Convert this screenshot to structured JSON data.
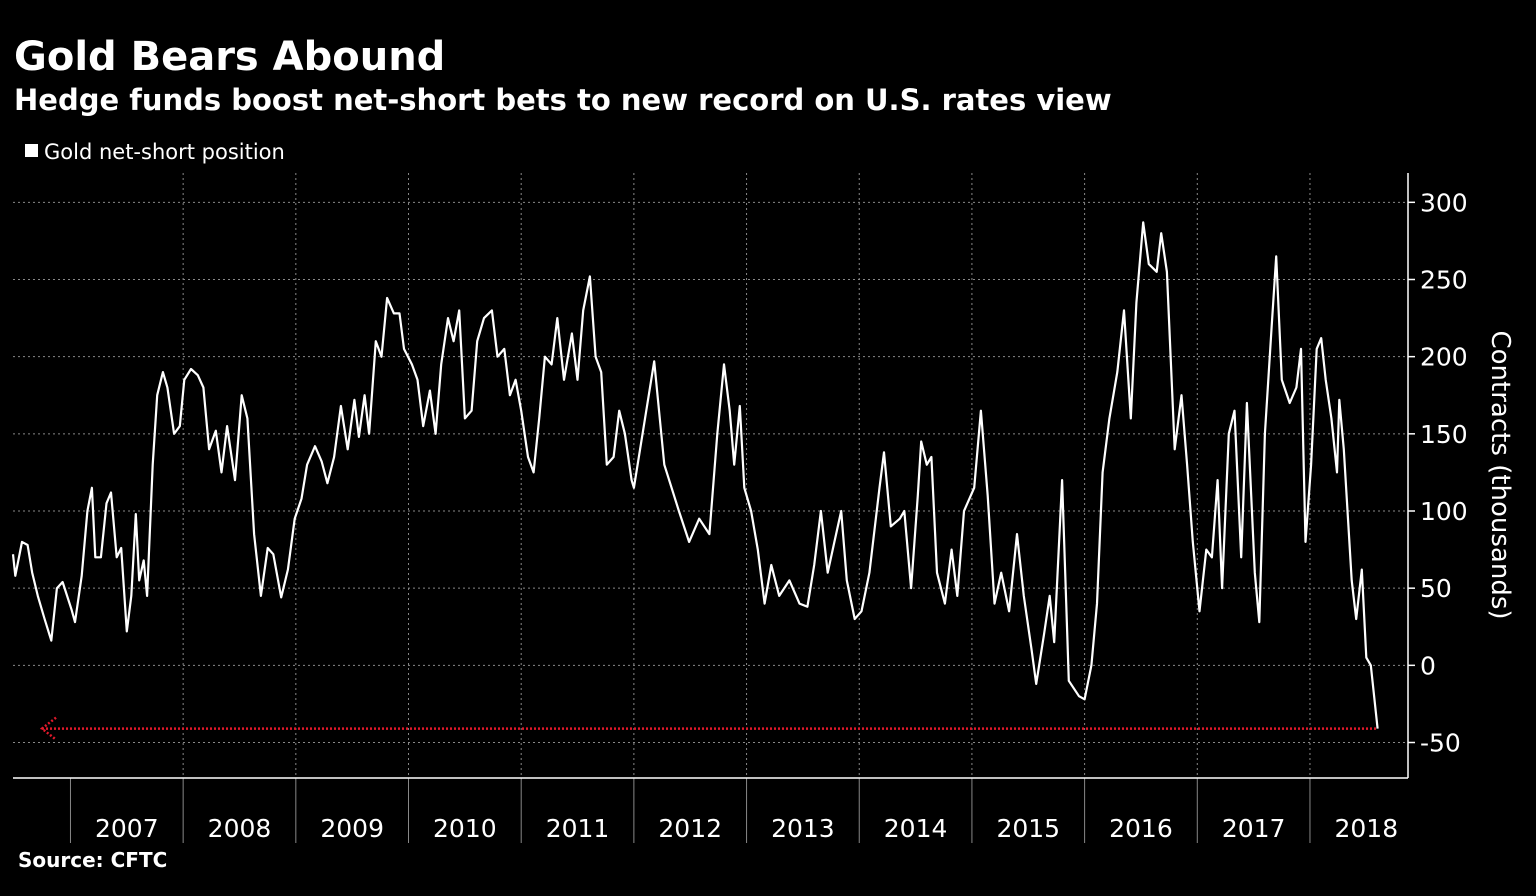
{
  "chart_data": {
    "type": "line",
    "title": "Gold Bears Abound",
    "subtitle": "Hedge funds boost net-short bets to new record on U.S. rates view",
    "y_label": "Contracts (thousands)",
    "source": "Source: CFTC",
    "legend": "top-left",
    "x": [
      2006.49,
      2006.51,
      2006.57,
      2006.62,
      2006.66,
      2006.71,
      2006.77,
      2006.83,
      2006.88,
      2006.93,
      2006.97,
      2007.01,
      2007.04,
      2007.1,
      2007.15,
      2007.19,
      2007.22,
      2007.27,
      2007.32,
      2007.36,
      2007.41,
      2007.45,
      2007.5,
      2007.54,
      2007.58,
      2007.61,
      2007.65,
      2007.68,
      2007.73,
      2007.77,
      2007.82,
      2007.86,
      2007.92,
      2007.97,
      2008.01,
      2008.07,
      2008.13,
      2008.18,
      2008.23,
      2008.29,
      2008.34,
      2008.39,
      2008.46,
      2008.52,
      2008.57,
      2008.63,
      2008.69,
      2008.75,
      2008.8,
      2008.87,
      2008.93,
      2008.99,
      2009.05,
      2009.1,
      2009.17,
      2009.23,
      2009.28,
      2009.34,
      2009.4,
      2009.46,
      2009.52,
      2009.56,
      2009.61,
      2009.65,
      2009.71,
      2009.76,
      2009.81,
      2009.87,
      2009.92,
      2009.96,
      2010.03,
      2010.08,
      2010.13,
      2010.19,
      2010.24,
      2010.29,
      2010.35,
      2010.4,
      2010.45,
      2010.5,
      2010.56,
      2010.61,
      2010.67,
      2010.74,
      2010.79,
      2010.85,
      2010.9,
      2010.95,
      2011.0,
      2011.06,
      2011.11,
      2011.16,
      2011.21,
      2011.27,
      2011.32,
      2011.38,
      2011.45,
      2011.5,
      2011.55,
      2011.61,
      2011.66,
      2011.71,
      2011.76,
      2011.82,
      2011.87,
      2011.92,
      2011.98,
      2012.0,
      2012.18,
      2012.27,
      2012.4,
      2012.49,
      2012.58,
      2012.67,
      2012.74,
      2012.8,
      2012.85,
      2012.89,
      2012.94,
      2012.98,
      2013.04,
      2013.1,
      2013.16,
      2013.22,
      2013.29,
      2013.38,
      2013.47,
      2013.54,
      2013.6,
      2013.66,
      2013.72,
      2013.78,
      2013.84,
      2013.89,
      2013.96,
      2014.02,
      2014.09,
      2014.18,
      2014.22,
      2014.28,
      2014.36,
      2014.4,
      2014.46,
      2014.52,
      2014.55,
      2014.6,
      2014.64,
      2014.69,
      2014.76,
      2014.82,
      2014.87,
      2014.93,
      2015.02,
      2015.08,
      2015.14,
      2015.2,
      2015.26,
      2015.33,
      2015.4,
      2015.46,
      2015.53,
      2015.57,
      2015.64,
      2015.69,
      2015.73,
      2015.8,
      2015.86,
      2015.95,
      2016.0,
      2016.06,
      2016.11,
      2016.16,
      2016.22,
      2016.29,
      2016.35,
      2016.41,
      2016.46,
      2016.52,
      2016.57,
      2016.64,
      2016.68,
      2016.73,
      2016.8,
      2016.86,
      2016.91,
      2016.96,
      2017.02,
      2017.08,
      2017.13,
      2017.18,
      2017.22,
      2017.28,
      2017.33,
      2017.39,
      2017.44,
      2017.51,
      2017.55,
      2017.6,
      2017.66,
      2017.7,
      2017.75,
      2017.82,
      2017.88,
      2017.92,
      2017.96,
      2018.01,
      2018.06,
      2018.1,
      2018.14,
      2018.19,
      2018.24,
      2018.26,
      2018.3,
      2018.37,
      2018.41,
      2018.46,
      2018.5,
      2018.54,
      2018.6
    ],
    "series": [
      {
        "name": "Gold net-short position",
        "color": "#ffffff",
        "values": [
          72,
          58,
          80,
          78,
          60,
          45,
          30,
          16,
          50,
          54,
          45,
          36,
          28,
          58,
          100,
          115,
          70,
          70,
          105,
          112,
          70,
          76,
          22,
          45,
          98,
          55,
          68,
          45,
          130,
          175,
          190,
          180,
          150,
          155,
          185,
          192,
          188,
          180,
          140,
          152,
          125,
          155,
          120,
          175,
          160,
          85,
          45,
          76,
          72,
          44,
          62,
          95,
          108,
          130,
          142,
          132,
          118,
          135,
          168,
          140,
          172,
          148,
          175,
          150,
          210,
          200,
          238,
          228,
          228,
          205,
          195,
          185,
          155,
          178,
          150,
          195,
          225,
          210,
          230,
          160,
          165,
          210,
          225,
          230,
          200,
          205,
          175,
          185,
          165,
          135,
          125,
          160,
          200,
          195,
          225,
          185,
          215,
          185,
          230,
          252,
          200,
          190,
          130,
          135,
          165,
          150,
          120,
          115,
          197,
          130,
          100,
          80,
          95,
          85,
          150,
          195,
          165,
          130,
          168,
          115,
          100,
          75,
          40,
          65,
          45,
          55,
          40,
          38,
          65,
          100,
          60,
          80,
          100,
          55,
          30,
          35,
          60,
          115,
          138,
          90,
          95,
          100,
          50,
          110,
          145,
          130,
          135,
          60,
          40,
          75,
          45,
          100,
          115,
          165,
          110,
          40,
          60,
          35,
          85,
          45,
          10,
          -12,
          20,
          45,
          15,
          120,
          -10,
          -20,
          -22,
          0,
          40,
          125,
          160,
          190,
          230,
          160,
          235,
          287,
          260,
          255,
          280,
          255,
          140,
          175,
          130,
          80,
          35,
          75,
          70,
          120,
          50,
          150,
          165,
          70,
          170,
          60,
          28,
          150,
          220,
          265,
          185,
          170,
          180,
          205,
          80,
          130,
          205,
          212,
          185,
          160,
          125,
          172,
          140,
          55,
          30,
          62,
          5,
          0,
          -41
        ]
      }
    ],
    "xlim": [
      2006.49,
      2018.87
    ],
    "xticks": [
      2007,
      2008,
      2009,
      2010,
      2011,
      2012,
      2013,
      2014,
      2015,
      2016,
      2017,
      2018
    ],
    "ylim": [
      -73,
      319
    ],
    "yticks": [
      -50,
      0,
      50,
      100,
      150,
      200,
      250,
      300
    ],
    "grid": true,
    "record_line": {
      "value": -41,
      "color": "#e0192b"
    }
  }
}
